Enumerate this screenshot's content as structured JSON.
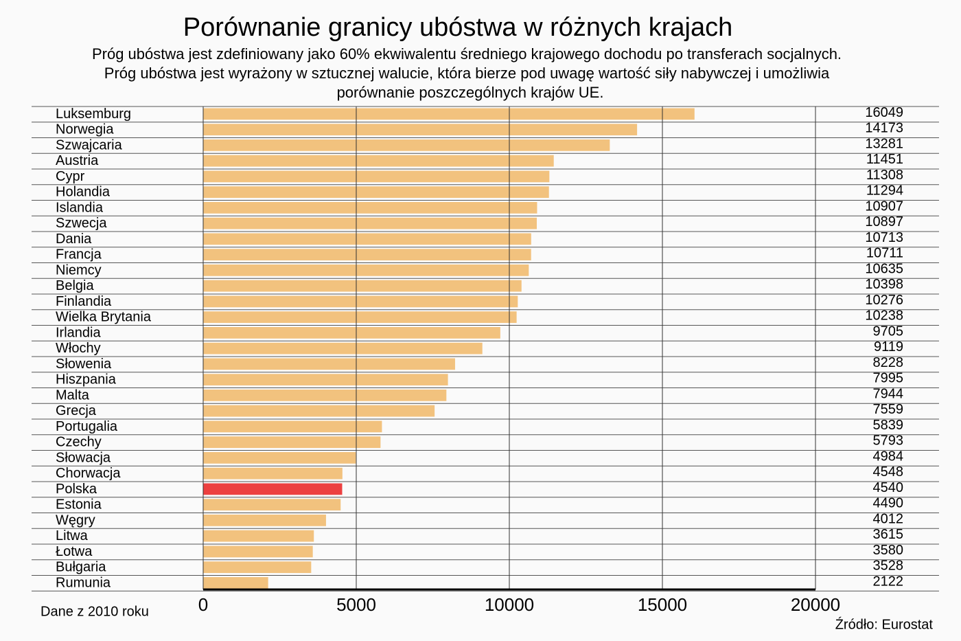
{
  "chart_data": {
    "type": "bar",
    "orientation": "horizontal",
    "title": "Porównanie granicy ubóstwa w różnych krajach",
    "subtitle": [
      "Próg ubóstwa jest zdefiniowany jako 60% ekwiwalentu średniego krajowego dochodu po transferach socjalnych.",
      "Próg ubóstwa jest wyrażony w sztucznej walucie, która bierze pod uwagę wartość siły nabywczej i umożliwia",
      "porównanie poszczególnych krajów UE."
    ],
    "categories": [
      "Luksemburg",
      "Norwegia",
      "Szwajcaria",
      "Austria",
      "Cypr",
      "Holandia",
      "Islandia",
      "Szwecja",
      "Dania",
      "Francja",
      "Niemcy",
      "Belgia",
      "Finlandia",
      "Wielka Brytania",
      "Irlandia",
      "Włochy",
      "Słowenia",
      "Hiszpania",
      "Malta",
      "Grecja",
      "Portugalia",
      "Czechy",
      "Słowacja",
      "Chorwacja",
      "Polska",
      "Estonia",
      "Węgry",
      "Litwa",
      "Łotwa",
      "Bułgaria",
      "Rumunia"
    ],
    "values": [
      16049,
      14173,
      13281,
      11451,
      11308,
      11294,
      10907,
      10897,
      10713,
      10711,
      10635,
      10398,
      10276,
      10238,
      9705,
      9119,
      8228,
      7995,
      7944,
      7559,
      5839,
      5793,
      4984,
      4548,
      4540,
      4490,
      4012,
      3615,
      3580,
      3528,
      2122
    ],
    "colors": [
      "#f2c27e",
      "#f2c27e",
      "#f2c27e",
      "#f2c27e",
      "#f2c27e",
      "#f2c27e",
      "#f2c27e",
      "#f2c27e",
      "#f2c27e",
      "#f2c27e",
      "#f2c27e",
      "#f2c27e",
      "#f2c27e",
      "#f2c27e",
      "#f2c27e",
      "#f2c27e",
      "#f2c27e",
      "#f2c27e",
      "#f2c27e",
      "#f2c27e",
      "#f2c27e",
      "#f2c27e",
      "#f2c27e",
      "#f2c27e",
      "#ec4040",
      "#f2c27e",
      "#f2c27e",
      "#f2c27e",
      "#f2c27e",
      "#f2c27e",
      "#f2c27e"
    ],
    "xlim": [
      0,
      20000
    ],
    "xticks": [
      0,
      5000,
      10000,
      15000,
      20000
    ],
    "grid": true,
    "note": "Dane z 2010 roku",
    "source": "Źródło: Eurostat"
  }
}
